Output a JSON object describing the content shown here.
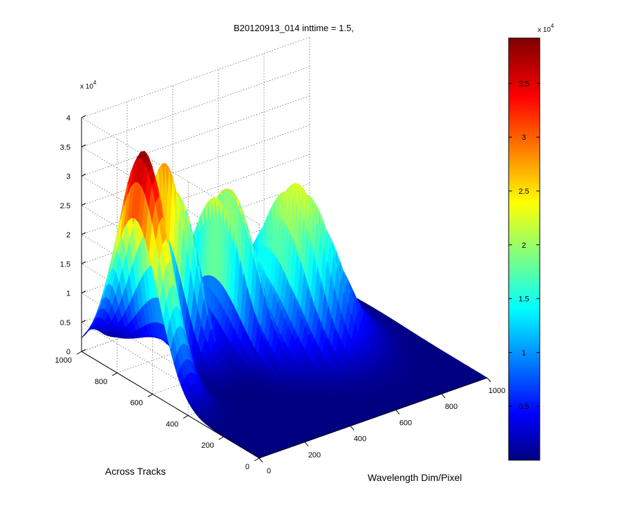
{
  "chart_data": {
    "type": "surface",
    "title": "B20120913_014 inttime = 1.5,",
    "xlabel": "Wavelength Dim/Pixel",
    "ylabel": "Across Tracks",
    "zlabel": "",
    "x_ticks": [
      "0",
      "200",
      "400",
      "600",
      "800",
      "1000"
    ],
    "y_ticks": [
      "0",
      "200",
      "400",
      "600",
      "800",
      "1000"
    ],
    "z_ticks": [
      "0",
      "0.5",
      "1",
      "1.5",
      "2",
      "2.5",
      "3",
      "3.5",
      "4"
    ],
    "z_exponent": "x 10^4",
    "xlim": [
      0,
      1000
    ],
    "ylim": [
      0,
      1000
    ],
    "zlim": [
      0,
      4
    ],
    "grid": true,
    "colormap": "jet",
    "colorbar": {
      "ticks": [
        "0.5",
        "1",
        "1.5",
        "2",
        "2.5",
        "3",
        "3.5"
      ],
      "exponent": "x 10^4",
      "range": [
        0.0,
        3.92
      ]
    },
    "peaks": [
      {
        "x": 0,
        "y": 720,
        "z": 3.92
      },
      {
        "x": 240,
        "y": 820,
        "z": 3.8
      },
      {
        "x": 430,
        "y": 780,
        "z": 2.9
      },
      {
        "x": 620,
        "y": 640,
        "z": 2.7
      }
    ]
  }
}
